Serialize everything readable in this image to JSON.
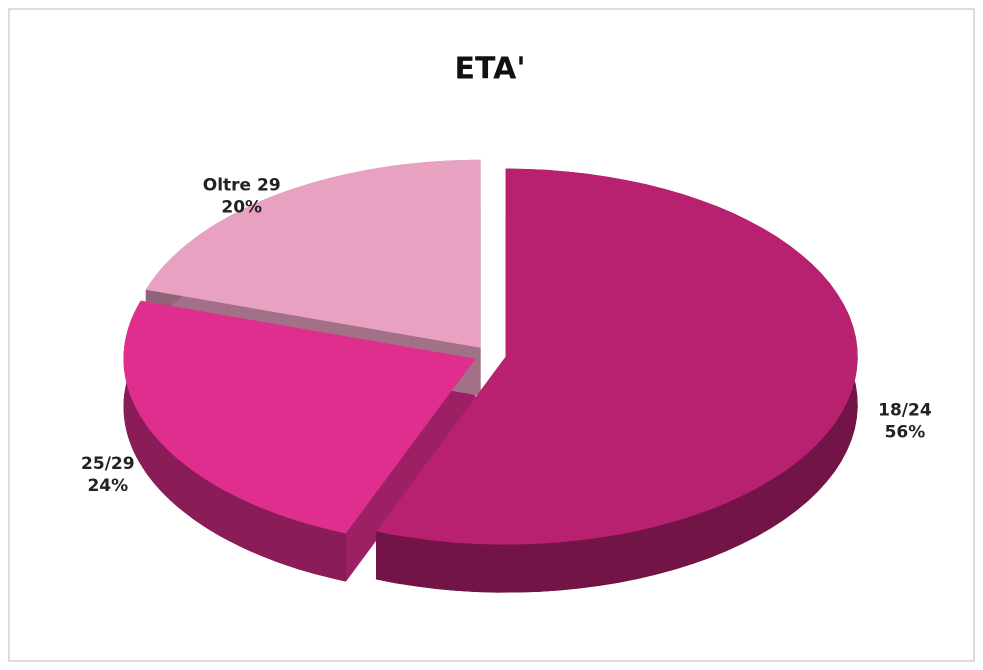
{
  "chart_data": {
    "type": "pie",
    "title": "ETA'",
    "categories": [
      "18/24",
      "25/29",
      "Oltre 29"
    ],
    "values": [
      56,
      24,
      20
    ],
    "value_labels": [
      "56%",
      "24%",
      "20%"
    ],
    "colors": [
      "#b8216f",
      "#df2e8e",
      "#e8a1c1"
    ]
  }
}
